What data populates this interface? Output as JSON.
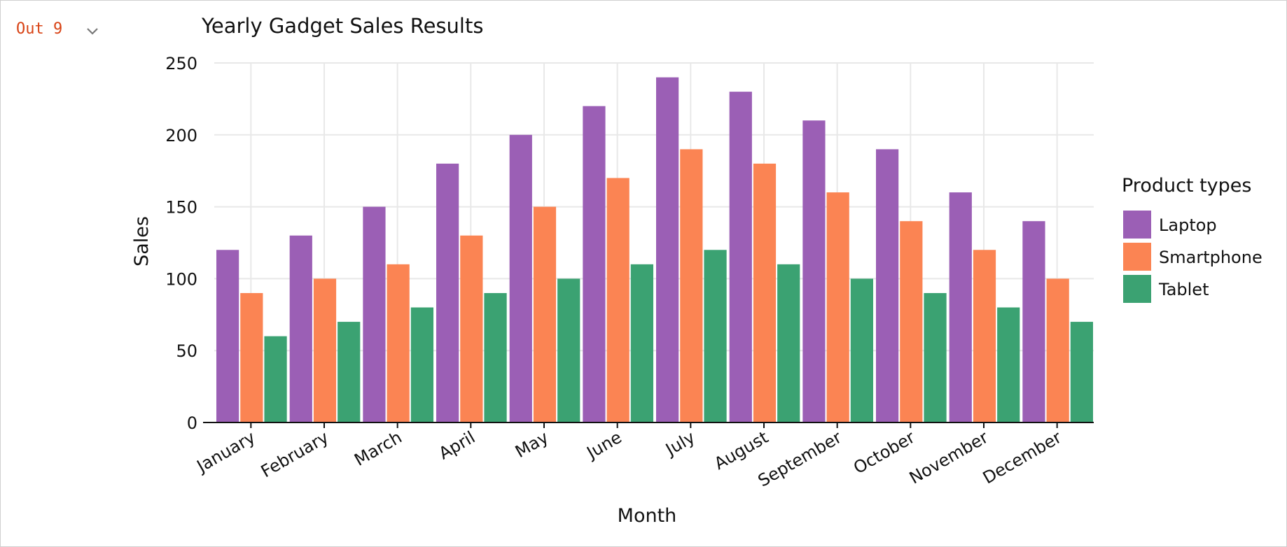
{
  "cell": {
    "out_label": "Out 9",
    "collapse_icon": "chevron-down-icon"
  },
  "chart_data": {
    "type": "bar",
    "title": "Yearly Gadget Sales Results",
    "xlabel": "Month",
    "ylabel": "Sales",
    "ylim": [
      0,
      250
    ],
    "yticks": [
      0,
      50,
      100,
      150,
      200,
      250
    ],
    "grid": true,
    "legend": {
      "title": "Product types",
      "placement": "right"
    },
    "categories": [
      "January",
      "February",
      "March",
      "April",
      "May",
      "June",
      "July",
      "August",
      "September",
      "October",
      "November",
      "December"
    ],
    "series": [
      {
        "name": "Laptop",
        "color": "#9b5fb5",
        "values": [
          120,
          130,
          150,
          180,
          200,
          220,
          240,
          230,
          210,
          190,
          160,
          140
        ]
      },
      {
        "name": "Smartphone",
        "color": "#fb8453",
        "values": [
          90,
          100,
          110,
          130,
          150,
          170,
          190,
          180,
          160,
          140,
          120,
          100
        ]
      },
      {
        "name": "Tablet",
        "color": "#3ba272",
        "values": [
          60,
          70,
          80,
          90,
          100,
          110,
          120,
          110,
          100,
          90,
          80,
          70
        ]
      }
    ]
  }
}
